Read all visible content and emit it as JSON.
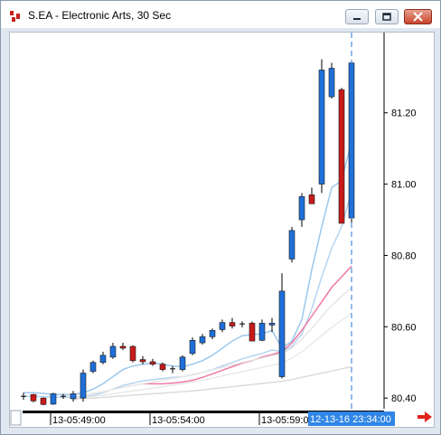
{
  "window": {
    "title": "S.EA - Electronic Arts, 30 Sec",
    "buttons": [
      "minimize-icon",
      "restore-icon",
      "close-icon"
    ]
  },
  "chart_data": {
    "type": "candlestick",
    "symbol": "S.EA",
    "interval": "30 Sec",
    "y_ticks": [
      "81.20",
      "81.00",
      "80.80",
      "80.60",
      "80.40"
    ],
    "ylim": [
      80.37,
      81.42
    ],
    "x_tick_labels": [
      "13-05:49:00",
      "13-05:54:00",
      "13-05:59:00"
    ],
    "cursor_time_label": "12-13-16 23:34:00",
    "colors": {
      "up": "#1f6fd8",
      "down": "#c81a1a",
      "cursor": "#2a7ad6",
      "time_badge": "#2f86e6"
    },
    "candles": [
      {
        "o": 80.405,
        "h": 80.415,
        "l": 80.395,
        "c": 80.405
      },
      {
        "o": 80.41,
        "h": 80.412,
        "l": 80.388,
        "c": 80.392
      },
      {
        "o": 80.4,
        "h": 80.402,
        "l": 80.38,
        "c": 80.382
      },
      {
        "o": 80.383,
        "h": 80.415,
        "l": 80.381,
        "c": 80.412
      },
      {
        "o": 80.405,
        "h": 80.412,
        "l": 80.398,
        "c": 80.402
      },
      {
        "o": 80.398,
        "h": 80.42,
        "l": 80.39,
        "c": 80.412
      },
      {
        "o": 80.4,
        "h": 80.48,
        "l": 80.39,
        "c": 80.47
      },
      {
        "o": 80.475,
        "h": 80.505,
        "l": 80.47,
        "c": 80.5
      },
      {
        "o": 80.5,
        "h": 80.53,
        "l": 80.495,
        "c": 80.52
      },
      {
        "o": 80.515,
        "h": 80.555,
        "l": 80.51,
        "c": 80.545
      },
      {
        "o": 80.545,
        "h": 80.555,
        "l": 80.535,
        "c": 80.54
      },
      {
        "o": 80.545,
        "h": 80.548,
        "l": 80.5,
        "c": 80.505
      },
      {
        "o": 80.508,
        "h": 80.518,
        "l": 80.495,
        "c": 80.502
      },
      {
        "o": 80.502,
        "h": 80.51,
        "l": 80.49,
        "c": 80.495
      },
      {
        "o": 80.495,
        "h": 80.5,
        "l": 80.475,
        "c": 80.48
      },
      {
        "o": 80.48,
        "h": 80.49,
        "l": 80.47,
        "c": 80.482
      },
      {
        "o": 80.48,
        "h": 80.52,
        "l": 80.475,
        "c": 80.515
      },
      {
        "o": 80.525,
        "h": 80.57,
        "l": 80.52,
        "c": 80.562
      },
      {
        "o": 80.555,
        "h": 80.58,
        "l": 80.55,
        "c": 80.572
      },
      {
        "o": 80.572,
        "h": 80.595,
        "l": 80.565,
        "c": 80.59
      },
      {
        "o": 80.592,
        "h": 80.62,
        "l": 80.585,
        "c": 80.612
      },
      {
        "o": 80.612,
        "h": 80.625,
        "l": 80.595,
        "c": 80.602
      },
      {
        "o": 80.605,
        "h": 80.615,
        "l": 80.598,
        "c": 80.608
      },
      {
        "o": 80.61,
        "h": 80.615,
        "l": 80.56,
        "c": 80.56
      },
      {
        "o": 80.562,
        "h": 80.62,
        "l": 80.56,
        "c": 80.61
      },
      {
        "o": 80.605,
        "h": 80.625,
        "l": 80.585,
        "c": 80.61
      },
      {
        "o": 80.46,
        "h": 80.75,
        "l": 80.455,
        "c": 80.7
      },
      {
        "o": 80.79,
        "h": 80.88,
        "l": 80.78,
        "c": 80.87
      },
      {
        "o": 80.9,
        "h": 80.975,
        "l": 80.88,
        "c": 80.965
      },
      {
        "o": 80.97,
        "h": 80.99,
        "l": 80.955,
        "c": 80.945
      },
      {
        "o": 81.0,
        "h": 81.35,
        "l": 80.975,
        "c": 81.32
      },
      {
        "o": 81.245,
        "h": 81.34,
        "l": 81.24,
        "c": 81.325
      },
      {
        "o": 81.265,
        "h": 81.27,
        "l": 80.89,
        "c": 80.89
      },
      {
        "o": 80.905,
        "h": 81.345,
        "l": 80.89,
        "c": 81.34
      }
    ],
    "ma_lines": [
      {
        "color": "#9cc8ec",
        "values": [
          80.415,
          80.415,
          80.413,
          80.41,
          80.41,
          80.41,
          80.415,
          80.425,
          80.44,
          80.46,
          80.48,
          80.49,
          80.495,
          80.498,
          80.495,
          80.49,
          80.488,
          80.495,
          80.505,
          80.52,
          80.54,
          80.56,
          80.575,
          80.578,
          80.58,
          80.59,
          80.54,
          80.56,
          80.62,
          80.76,
          80.88,
          80.99,
          81.01,
          81.12
        ]
      },
      {
        "color": "#b6d4ef",
        "values": [
          80.405,
          80.405,
          80.404,
          80.403,
          80.402,
          80.402,
          80.404,
          80.408,
          80.415,
          80.425,
          80.435,
          80.442,
          80.448,
          80.452,
          80.455,
          80.458,
          80.46,
          80.465,
          80.472,
          80.48,
          80.49,
          80.5,
          80.51,
          80.518,
          80.525,
          80.535,
          80.53,
          80.545,
          80.58,
          80.65,
          80.74,
          80.82,
          80.88,
          80.98
        ]
      },
      {
        "color": "#ee7aa4",
        "values": [
          null,
          null,
          null,
          null,
          null,
          null,
          null,
          null,
          null,
          null,
          null,
          null,
          80.44,
          80.44,
          80.44,
          80.442,
          80.445,
          80.45,
          80.458,
          80.468,
          80.478,
          80.488,
          80.498,
          80.505,
          80.515,
          80.522,
          80.53,
          80.555,
          80.59,
          80.63,
          80.67,
          80.71,
          80.74,
          80.77
        ]
      },
      {
        "color": "#e6e6e6",
        "values": [
          null,
          null,
          null,
          null,
          80.405,
          80.408,
          80.41,
          80.414,
          80.418,
          80.424,
          80.43,
          80.435,
          80.44,
          80.445,
          80.45,
          80.455,
          80.46,
          80.466,
          80.472,
          80.479,
          80.486,
          80.493,
          80.5,
          80.506,
          80.512,
          80.519,
          80.524,
          80.54,
          80.565,
          80.595,
          80.628,
          80.66,
          80.685,
          80.71
        ]
      },
      {
        "color": "#e9e9e9",
        "values": [
          null,
          null,
          null,
          null,
          null,
          80.4,
          80.402,
          80.405,
          80.408,
          80.412,
          80.416,
          80.42,
          80.424,
          80.428,
          80.432,
          80.436,
          80.44,
          80.445,
          80.45,
          80.456,
          80.462,
          80.468,
          80.474,
          80.48,
          80.486,
          80.492,
          80.498,
          80.512,
          80.53,
          80.552,
          80.576,
          80.598,
          80.618,
          80.638
        ]
      },
      {
        "color": "#dcdcdc",
        "values": [
          null,
          null,
          null,
          null,
          null,
          80.398,
          80.399,
          80.4,
          80.402,
          80.404,
          80.406,
          80.408,
          80.41,
          80.412,
          80.414,
          80.416,
          80.418,
          80.42,
          80.423,
          80.426,
          80.429,
          80.432,
          80.435,
          80.438,
          80.441,
          80.444,
          80.447,
          80.452,
          80.458,
          80.464,
          80.47,
          80.476,
          80.482,
          80.488
        ]
      }
    ]
  }
}
